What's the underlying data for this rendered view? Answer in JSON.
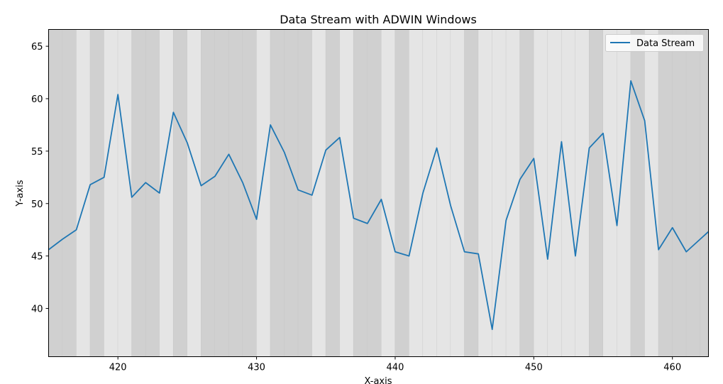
{
  "chart_data": {
    "type": "line",
    "title": "Data Stream with ADWIN Windows",
    "xlabel": "X-axis",
    "ylabel": "Y-axis",
    "xlim": [
      415,
      462.6
    ],
    "ylim": [
      35.4,
      66.6
    ],
    "xticks": [
      420,
      430,
      440,
      450,
      460
    ],
    "yticks": [
      40,
      45,
      50,
      55,
      60,
      65
    ],
    "grid": false,
    "legend": "top-right",
    "series": [
      {
        "name": "Data Stream",
        "color": "#1f77b4",
        "x": [
          415,
          416,
          417,
          418,
          419,
          420,
          421,
          422,
          423,
          424,
          425,
          426,
          427,
          428,
          429,
          430,
          431,
          432,
          433,
          434,
          435,
          436,
          437,
          438,
          439,
          440,
          441,
          442,
          443,
          444,
          445,
          446,
          447,
          448,
          449,
          450,
          451,
          452,
          453,
          454,
          455,
          456,
          457,
          458,
          459,
          460,
          461,
          462,
          463
        ],
        "y": [
          45.6,
          46.6,
          47.5,
          51.8,
          52.5,
          60.4,
          50.6,
          52.0,
          51.0,
          58.7,
          55.8,
          51.7,
          52.6,
          54.7,
          52.0,
          48.5,
          57.5,
          54.9,
          51.3,
          50.8,
          55.1,
          56.3,
          48.6,
          48.1,
          50.4,
          45.4,
          45.0,
          51.0,
          55.3,
          49.8,
          45.4,
          45.2,
          38.0,
          48.4,
          52.3,
          54.3,
          44.7,
          55.9,
          45.0,
          55.3,
          56.7,
          47.9,
          61.7,
          57.9,
          45.6,
          47.7,
          45.4,
          46.6,
          47.8
        ]
      }
    ],
    "windows": {
      "x_start": 415,
      "width": 1,
      "shades": [
        "dark",
        "dark",
        "light",
        "dark",
        "light",
        "light",
        "dark",
        "dark",
        "light",
        "dark",
        "light",
        "dark",
        "dark",
        "dark",
        "dark",
        "light",
        "dark",
        "dark",
        "dark",
        "light",
        "dark",
        "light",
        "dark",
        "dark",
        "light",
        "dark",
        "light",
        "light",
        "light",
        "light",
        "dark",
        "light",
        "light",
        "light",
        "dark",
        "light",
        "light",
        "light",
        "light",
        "dark",
        "light",
        "light",
        "dark",
        "light",
        "dark",
        "dark",
        "dark",
        "dark"
      ],
      "dark_color": "#d0d0d0",
      "light_color": "#e5e5e5"
    }
  }
}
